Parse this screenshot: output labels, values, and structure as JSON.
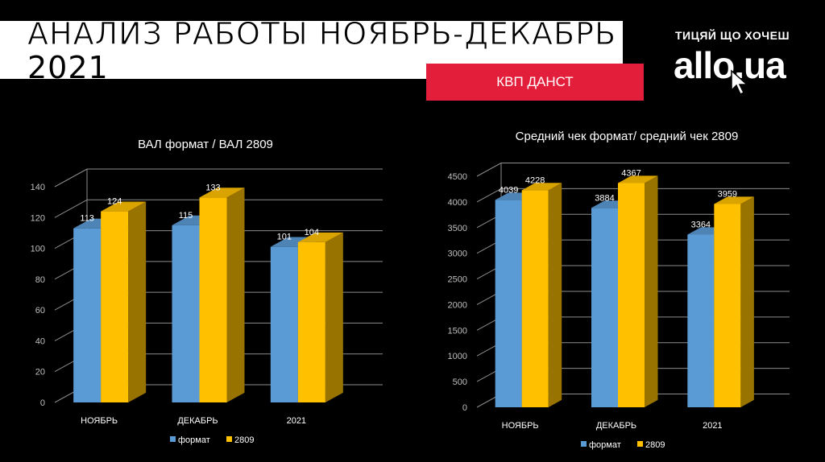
{
  "header": {
    "title_line1": "АНАЛИЗ  РАБОТЫ  НОЯБРЬ-ДЕКАБРЬ",
    "title_line2": "2021",
    "badge": "КВП  ДАНСТ",
    "logo_tagline": "ТИЦЯЙ ЩО ХОЧЕШ",
    "logo_text": "allo.ua"
  },
  "colors": {
    "series_format": "#5b9bd5",
    "series_2809": "#ffc000",
    "badge": "#e31e3a"
  },
  "chart_data": [
    {
      "type": "bar",
      "title": "ВАЛ формат / ВАЛ 2809",
      "categories": [
        "НОЯБРЬ",
        "ДЕКАБРЬ",
        "2021"
      ],
      "series": [
        {
          "name": "формат",
          "values": [
            113,
            115,
            101
          ]
        },
        {
          "name": "2809",
          "values": [
            124,
            133,
            104
          ]
        }
      ],
      "ylim": [
        0,
        140
      ],
      "yticks": [
        0,
        20,
        40,
        60,
        80,
        100,
        120,
        140
      ],
      "grid": true,
      "legend": "bottom"
    },
    {
      "type": "bar",
      "title": "Средний чек формат/ средний чек  2809",
      "categories": [
        "НОЯБРЬ",
        "ДЕКАБРЬ",
        "2021"
      ],
      "series": [
        {
          "name": "формат",
          "values": [
            4039,
            3884,
            3364
          ]
        },
        {
          "name": "2809",
          "values": [
            4228,
            4367,
            3959
          ]
        }
      ],
      "ylim": [
        0,
        4500
      ],
      "yticks": [
        0,
        500,
        1000,
        1500,
        2000,
        2500,
        3000,
        3500,
        4000,
        4500
      ],
      "grid": true,
      "legend": "bottom"
    }
  ]
}
